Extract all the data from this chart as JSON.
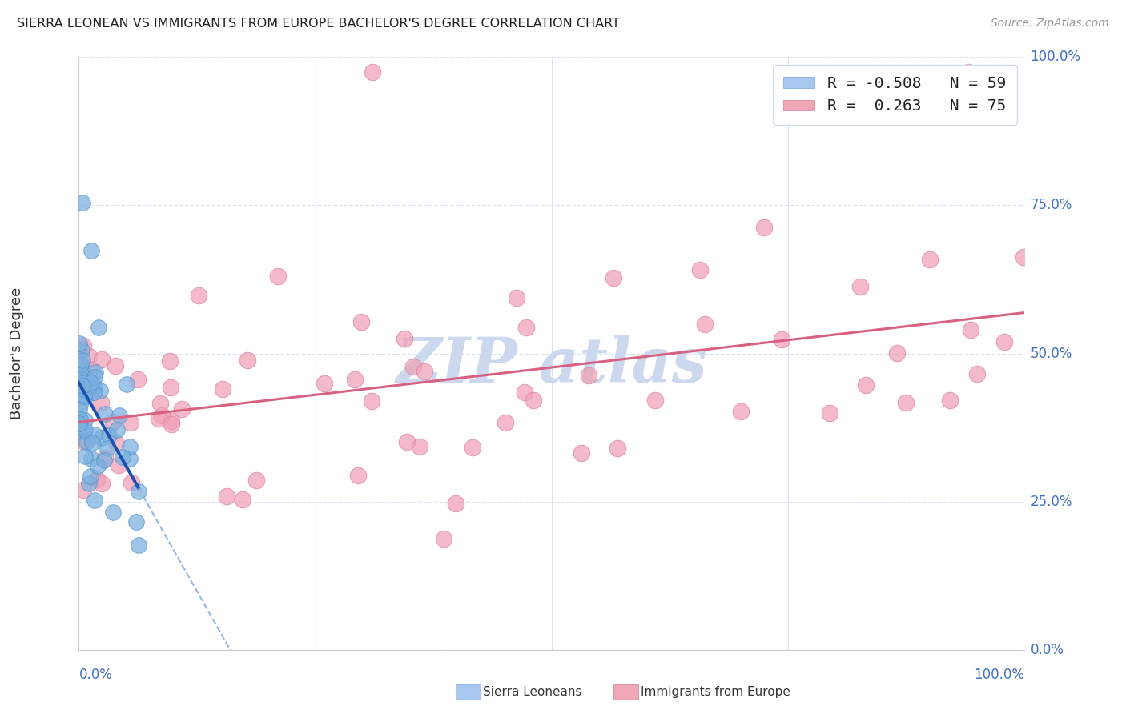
{
  "title": "SIERRA LEONEAN VS IMMIGRANTS FROM EUROPE BACHELOR'S DEGREE CORRELATION CHART",
  "source": "Source: ZipAtlas.com",
  "ylabel": "Bachelor's Degree",
  "xlim": [
    0,
    100
  ],
  "ylim": [
    0,
    100
  ],
  "ytick_values": [
    0,
    25,
    50,
    75,
    100
  ],
  "ytick_labels": [
    "0.0%",
    "25.0%",
    "50.0%",
    "75.0%",
    "100.0%"
  ],
  "xtick_values": [
    0,
    100
  ],
  "xtick_labels": [
    "0.0%",
    "100.0%"
  ],
  "blue_r": -0.508,
  "blue_n": 59,
  "pink_r": 0.263,
  "pink_n": 75,
  "blue_scatter_color": "#7ab0e0",
  "blue_scatter_edge": "#5090c8",
  "pink_scatter_color": "#f0a0b4",
  "pink_scatter_edge": "#d880a0",
  "blue_line_color": "#1a50b0",
  "blue_dashed_color": "#90b8e0",
  "pink_line_color": "#d86080",
  "watermark_color": "#ccd8ee",
  "background_color": "#ffffff",
  "grid_color": "#d8e4ee",
  "legend_label_blue": "R = -0.508   N = 59",
  "legend_label_pink": "R =  0.263   N = 75",
  "legend_patch_blue": "#a8c8f0",
  "legend_patch_pink": "#f0a8b8",
  "bottom_label_blue": "Sierra Leoneans",
  "bottom_label_pink": "Immigrants from Europe",
  "title_color": "#222222",
  "axis_tick_color": "#4070c0"
}
